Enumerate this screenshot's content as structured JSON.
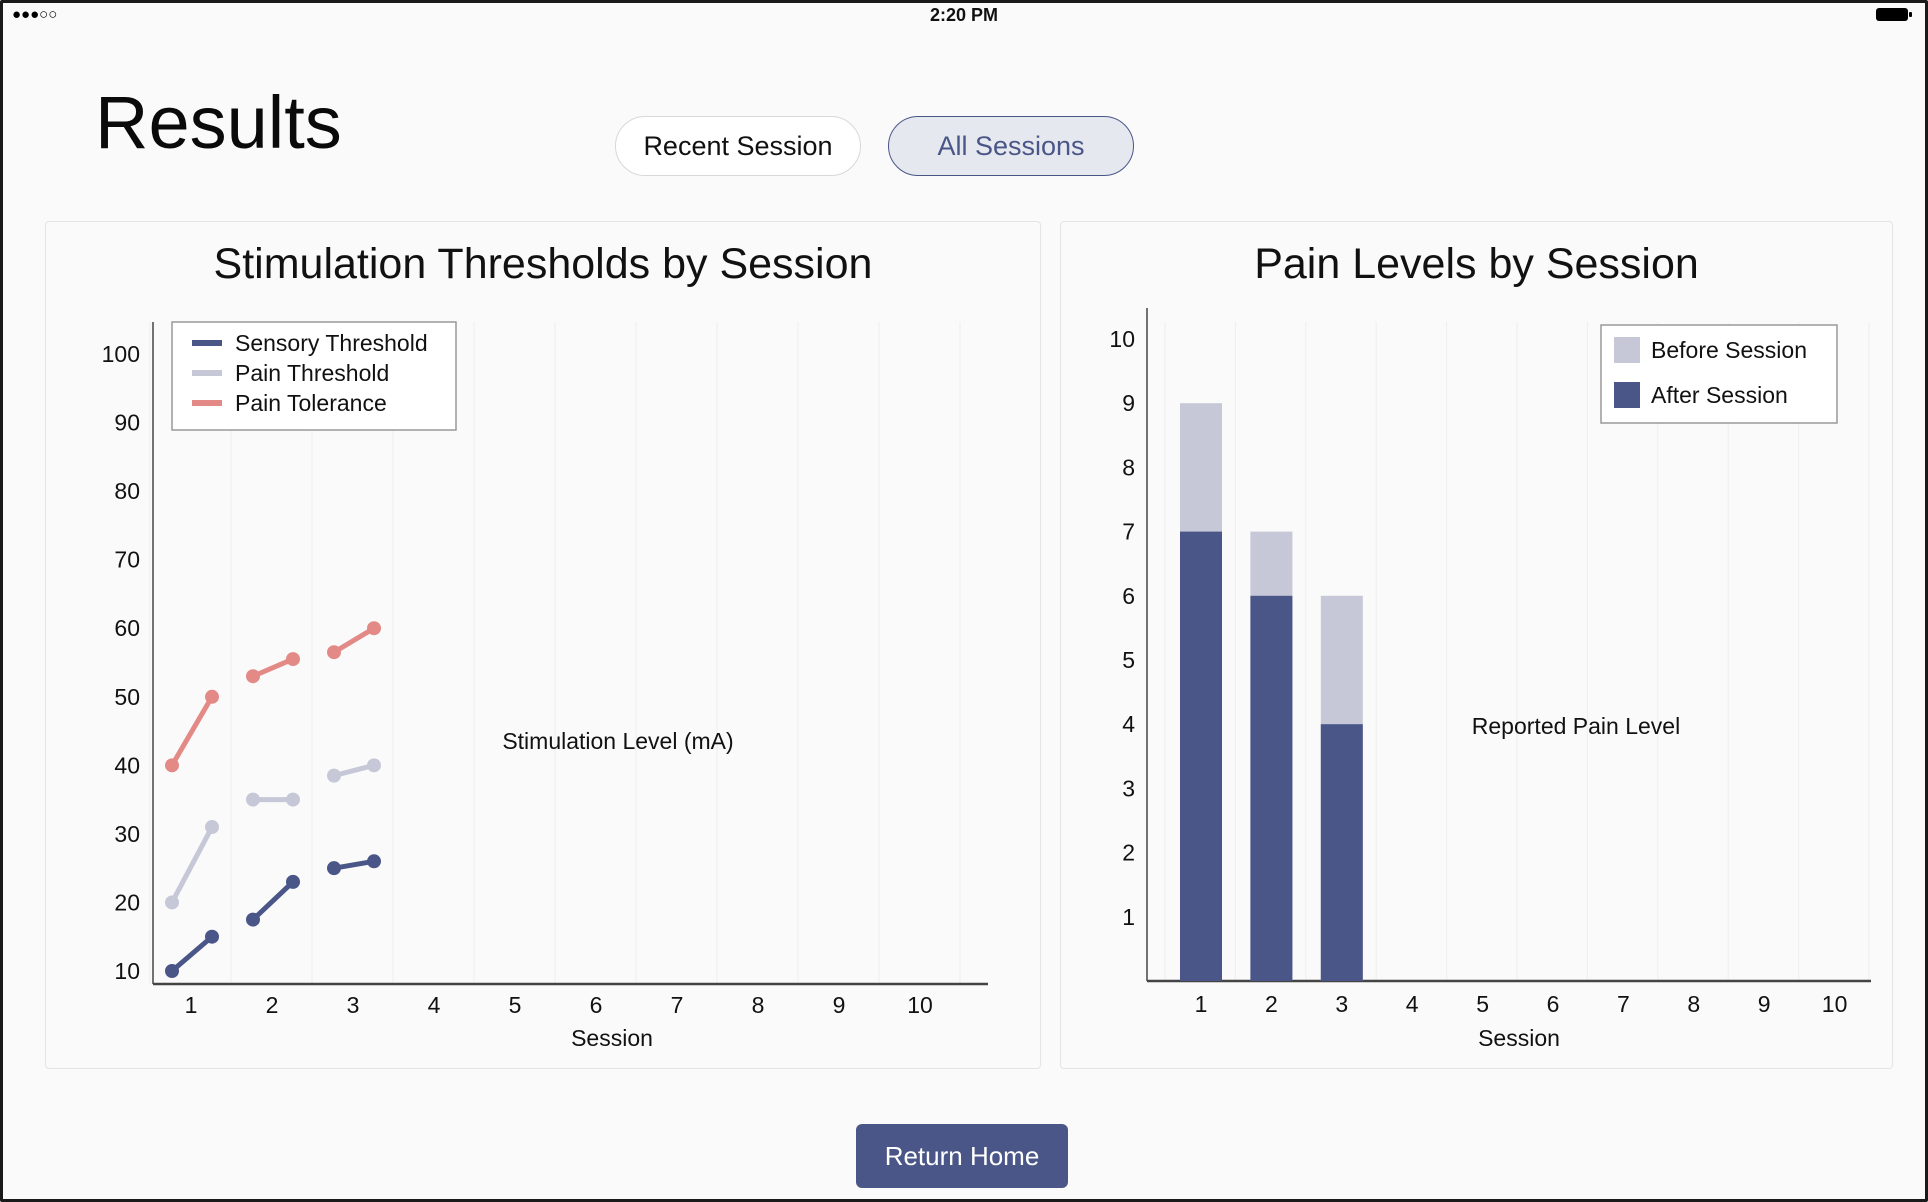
{
  "status_bar": {
    "signal": "●●●○○",
    "time": "2:20 PM"
  },
  "page": {
    "title": "Results"
  },
  "segments": {
    "recent_label": "Recent Session",
    "all_label": "All Sessions"
  },
  "colors": {
    "accent": "#4a5688",
    "sensory": "#4a5688",
    "pain_threshold": "#c6c8d8",
    "pain_tolerance": "#e38a87",
    "before": "#c6c8d8",
    "after": "#4a5688"
  },
  "chart_data": [
    {
      "type": "line",
      "title": "Stimulation Thresholds by Session",
      "xlabel": "Session",
      "ylabel": "Stimulation Level (mA)",
      "x_ticks": [
        "1",
        "2",
        "3",
        "4",
        "5",
        "6",
        "7",
        "8",
        "9",
        "10"
      ],
      "y_ticks": [
        "10",
        "20",
        "30",
        "40",
        "50",
        "60",
        "70",
        "80",
        "90",
        "100"
      ],
      "xlim": [
        0.5,
        10.8
      ],
      "ylim": [
        0,
        100
      ],
      "grid": true,
      "legend_position": "top-left",
      "series": [
        {
          "name": "Sensory Threshold",
          "color": "#4a5688",
          "segments": [
            {
              "session": 1,
              "start": 10,
              "end": 15
            },
            {
              "session": 2,
              "start": 17.5,
              "end": 23
            },
            {
              "session": 3,
              "start": 25,
              "end": 26
            }
          ]
        },
        {
          "name": "Pain Threshold",
          "color": "#c6c8d8",
          "segments": [
            {
              "session": 1,
              "start": 20,
              "end": 31
            },
            {
              "session": 2,
              "start": 35,
              "end": 35
            },
            {
              "session": 3,
              "start": 38.5,
              "end": 40
            }
          ]
        },
        {
          "name": "Pain Tolerance",
          "color": "#e38a87",
          "segments": [
            {
              "session": 1,
              "start": 40,
              "end": 50
            },
            {
              "session": 2,
              "start": 53,
              "end": 55.5
            },
            {
              "session": 3,
              "start": 56.5,
              "end": 60
            }
          ]
        }
      ]
    },
    {
      "type": "bar",
      "title": "Pain Levels by Session",
      "xlabel": "Session",
      "ylabel": "Reported Pain Level",
      "categories": [
        "1",
        "2",
        "3",
        "4",
        "5",
        "6",
        "7",
        "8",
        "9",
        "10"
      ],
      "y_ticks": [
        "1",
        "2",
        "3",
        "4",
        "5",
        "6",
        "7",
        "8",
        "9",
        "10"
      ],
      "ylim": [
        0,
        10
      ],
      "grid": true,
      "legend_position": "top-right",
      "series": [
        {
          "name": "Before Session",
          "color": "#c6c8d8",
          "values": [
            9,
            7,
            6,
            null,
            null,
            null,
            null,
            null,
            null,
            null
          ]
        },
        {
          "name": "After Session",
          "color": "#4a5688",
          "values": [
            7,
            6,
            4,
            null,
            null,
            null,
            null,
            null,
            null,
            null
          ]
        }
      ]
    }
  ],
  "footer": {
    "home_label": "Return Home"
  }
}
